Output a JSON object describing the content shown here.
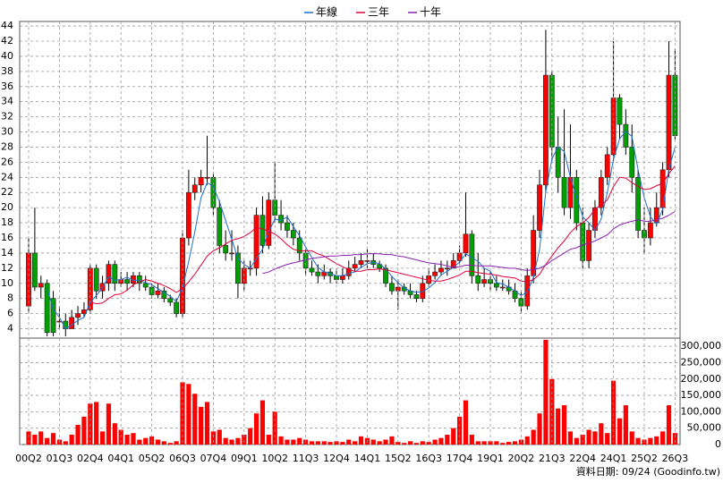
{
  "chart_data": [
    {
      "type": "candlestick",
      "up_color": "#ff0000",
      "down_color": "#00a000",
      "open": [
        7,
        14,
        9.5,
        10,
        8,
        5,
        5,
        4,
        5.5,
        6,
        6.5,
        12,
        9,
        10,
        12.5,
        10,
        10.5,
        10,
        11,
        10,
        9.5,
        8.5,
        9,
        8,
        7.5,
        6,
        16,
        22,
        23,
        24,
        24,
        20,
        15,
        14,
        14,
        10,
        12,
        12,
        19,
        15,
        21,
        19,
        18,
        17,
        16,
        14,
        12,
        11.5,
        11,
        11.5,
        11,
        10.5,
        11,
        12,
        12.5,
        13,
        13,
        12.5,
        12,
        10,
        9,
        9.5,
        9,
        8.5,
        8,
        10,
        11,
        11.5,
        12,
        12,
        13,
        14,
        16.5,
        11,
        10,
        10.5,
        10,
        9.5,
        9.5,
        9,
        8,
        7,
        11,
        17,
        23,
        37.5,
        28,
        24,
        20,
        24,
        18,
        13,
        17,
        20,
        24,
        27,
        34.5,
        31,
        28,
        24,
        17,
        16,
        18,
        20,
        25,
        37.5
      ],
      "high": [
        16,
        20,
        11,
        10.5,
        9,
        7,
        6,
        6.5,
        7,
        7.5,
        12.5,
        12.5,
        11,
        13,
        13,
        11.5,
        11.5,
        11.5,
        11.5,
        11,
        10,
        10,
        9.5,
        8.5,
        8,
        17,
        25,
        24,
        25,
        29.5,
        24.5,
        21,
        17,
        17,
        15,
        13,
        13,
        20,
        21.5,
        22,
        26,
        21,
        19,
        18,
        17,
        14.5,
        13,
        12.5,
        12.5,
        12,
        12,
        12,
        13,
        13.5,
        14,
        14.5,
        14,
        13,
        12.5,
        11,
        10.5,
        10,
        10,
        9,
        11,
        12,
        12.5,
        13,
        13,
        14,
        15,
        22,
        17,
        14,
        12,
        11.5,
        11,
        10.5,
        10.5,
        10,
        9,
        12,
        19,
        25,
        43.5,
        38,
        32,
        33,
        31,
        25,
        20,
        18,
        21,
        25,
        28,
        42,
        35,
        33,
        31,
        25,
        20,
        20,
        22,
        26,
        42,
        41
      ],
      "low": [
        6,
        9,
        8,
        3,
        3,
        4,
        3,
        4,
        4.5,
        5.5,
        6,
        8,
        8,
        9,
        9,
        9.5,
        9,
        9.5,
        9,
        9,
        8,
        8,
        7.5,
        7,
        5.5,
        5.5,
        15,
        21,
        22,
        23,
        19,
        14,
        13,
        13,
        8,
        9,
        11,
        11,
        14,
        14.5,
        18,
        17,
        16,
        15,
        13,
        11,
        11,
        10,
        10.5,
        10,
        10,
        10,
        10.5,
        11.5,
        12,
        12,
        12,
        11.5,
        9.5,
        8.5,
        6.5,
        8.5,
        8,
        7.5,
        7.5,
        9.5,
        10.5,
        11,
        11,
        12,
        12.5,
        13.5,
        10,
        9,
        9.5,
        9,
        9,
        9,
        8.5,
        7.5,
        6,
        6.5,
        10,
        16,
        22,
        26,
        22,
        19,
        18.5,
        17,
        12,
        12,
        16,
        19,
        23,
        26,
        29,
        27,
        22,
        16,
        14,
        15,
        17.5,
        19,
        24,
        29
      ],
      "close": [
        14,
        9.5,
        10,
        3.5,
        3.5,
        5,
        4,
        5.5,
        6,
        6.5,
        12,
        9,
        10,
        12.5,
        10,
        10.5,
        10,
        11,
        10,
        9.5,
        8.5,
        9,
        8,
        7.5,
        6,
        16,
        22,
        23,
        24,
        24,
        20,
        15,
        14,
        14,
        10,
        12,
        12,
        19,
        15,
        21,
        19,
        18,
        17,
        16,
        14,
        12,
        11.5,
        11,
        11.5,
        11,
        10.5,
        11,
        12,
        12.5,
        13,
        13,
        12.5,
        12,
        10,
        9,
        9.5,
        9,
        8.5,
        8,
        10,
        11,
        11.5,
        12,
        12,
        13,
        14,
        16.5,
        11,
        10,
        10.5,
        10,
        9.5,
        9.5,
        9,
        8,
        7,
        11,
        17,
        23,
        37.5,
        28,
        24,
        20,
        24,
        18,
        13,
        17,
        20,
        24,
        27,
        34.5,
        31,
        28,
        24,
        17,
        16,
        18,
        20,
        25,
        37.5,
        29.5
      ],
      "series": [
        {
          "name": "年線",
          "color": "#1e6fd0",
          "values": [
            null,
            null,
            null,
            9.3,
            6.6,
            5.5,
            4,
            4.5,
            5.1,
            5.5,
            7.5,
            8.4,
            9.4,
            10.9,
            10.4,
            10.5,
            10.8,
            10.4,
            10.4,
            10.1,
            9.8,
            9.3,
            8.8,
            8.3,
            7.6,
            9.4,
            12.9,
            16.8,
            21.3,
            23.3,
            22.8,
            20.8,
            18.3,
            15.8,
            13.3,
            12.5,
            12,
            13.3,
            14.5,
            16.8,
            18.5,
            18.3,
            18.8,
            17.5,
            16.3,
            14.8,
            13.4,
            12.1,
            11.5,
            11.3,
            11,
            11,
            11.3,
            11.5,
            12.1,
            12.6,
            12.8,
            12.6,
            11.9,
            10.9,
            10.1,
            9.4,
            9,
            8.8,
            8.9,
            9.4,
            10.1,
            11.1,
            11.6,
            12.1,
            12.8,
            13.9,
            13.4,
            12.9,
            12,
            11.6,
            10.1,
            9.9,
            9.5,
            9,
            8.4,
            8.8,
            10.8,
            14.5,
            22.1,
            26.4,
            28.1,
            27.4,
            24,
            21.5,
            18.8,
            18,
            17,
            18.5,
            22,
            26.4,
            29.1,
            30.1,
            29.4,
            25,
            21.3,
            18.8,
            17.8,
            19.8,
            25.1,
            28
          ]
        },
        {
          "name": "三年",
          "color": "#e0003a",
          "values": [
            null,
            null,
            null,
            null,
            null,
            null,
            null,
            null,
            null,
            null,
            7.5,
            7.3,
            7.4,
            8,
            8.5,
            8.6,
            9.1,
            9.8,
            10.2,
            10.5,
            10.3,
            10,
            9.7,
            9.3,
            8.8,
            9.3,
            10.2,
            11.2,
            12.4,
            13.6,
            14.3,
            14.7,
            15.2,
            15.7,
            15.9,
            16.2,
            16.7,
            17.4,
            17.2,
            16.9,
            16.5,
            15.9,
            15.1,
            14.5,
            14.3,
            14.3,
            14.3,
            13.9,
            13.6,
            13.1,
            12.6,
            12.2,
            11.8,
            11.6,
            11.6,
            11.8,
            11.8,
            11.9,
            11.8,
            11.6,
            11.4,
            11.2,
            11,
            10.8,
            10.6,
            10.4,
            10.3,
            10.3,
            10.5,
            10.8,
            11.1,
            11.6,
            11.6,
            11.4,
            11.3,
            11.2,
            11.1,
            10.9,
            10.8,
            10.7,
            10.3,
            10.2,
            10.5,
            11.2,
            12.5,
            13.6,
            14.7,
            15.6,
            16.7,
            17.5,
            18,
            18.7,
            19.8,
            20.4,
            21,
            22.8,
            24,
            23.9,
            23.3,
            22.8,
            22.4,
            22.5,
            22.9,
            23.2,
            24.5,
            25.5
          ]
        },
        {
          "name": "十年",
          "color": "#8a1fb0",
          "values": [
            null,
            null,
            null,
            null,
            null,
            null,
            null,
            null,
            null,
            null,
            null,
            null,
            null,
            null,
            null,
            null,
            null,
            null,
            null,
            null,
            null,
            null,
            null,
            null,
            null,
            null,
            null,
            null,
            null,
            null,
            null,
            null,
            null,
            null,
            null,
            null,
            null,
            null,
            11.3,
            11.5,
            11.9,
            12.2,
            12.5,
            12.7,
            12.9,
            13.1,
            13.3,
            13.4,
            13.5,
            13.6,
            13.6,
            13.7,
            13.7,
            13.8,
            13.8,
            13.9,
            13.9,
            13.9,
            13.8,
            13.8,
            13.6,
            13.5,
            13.3,
            13.1,
            12.9,
            12.7,
            12.6,
            12.5,
            12.3,
            12.1,
            12.2,
            12.4,
            12.4,
            12.3,
            12.3,
            12.3,
            12.2,
            12.1,
            12,
            12,
            11.8,
            11.7,
            11.8,
            12,
            12.4,
            13,
            13.5,
            14,
            14.5,
            14.7,
            15.1,
            15.3,
            15.6,
            16,
            16.4,
            17.2,
            17.7,
            18,
            18.2,
            18.4,
            18.2,
            18.2,
            18.4,
            18.6,
            19,
            19.5
          ]
        }
      ],
      "ylim": [
        3,
        44.6
      ],
      "yticks": [
        4,
        6,
        8,
        10,
        12,
        14,
        16,
        18,
        20,
        22,
        24,
        26,
        28,
        30,
        32,
        34,
        36,
        38,
        40,
        42,
        44
      ],
      "grid": true
    },
    {
      "type": "bar",
      "color": "#ff0000",
      "categories": [
        "00Q2",
        null,
        null,
        null,
        null,
        "01Q3",
        null,
        null,
        null,
        null,
        "02Q4",
        null,
        null,
        null,
        null,
        "04Q1",
        null,
        null,
        null,
        null,
        "05Q2",
        null,
        null,
        null,
        null,
        "06Q3",
        null,
        null,
        null,
        null,
        "07Q4",
        null,
        null,
        null,
        null,
        "09Q1",
        null,
        null,
        null,
        null,
        "10Q2",
        null,
        null,
        null,
        null,
        "11Q3",
        null,
        null,
        null,
        null,
        "12Q4",
        null,
        null,
        null,
        null,
        "14Q1",
        null,
        null,
        null,
        null,
        "15Q2",
        null,
        null,
        null,
        null,
        "16Q3",
        null,
        null,
        null,
        null,
        "17Q4",
        null,
        null,
        null,
        null,
        "19Q1",
        null,
        null,
        null,
        null,
        "20Q2",
        null,
        null,
        null,
        null,
        "21Q3",
        null,
        null,
        null,
        null,
        "22Q4",
        null,
        null,
        null,
        null,
        "24Q1",
        null,
        null,
        null,
        null,
        "25Q2",
        null,
        null,
        null,
        null,
        "26Q3"
      ],
      "values": [
        40000,
        30000,
        40000,
        20000,
        35000,
        15000,
        10000,
        30000,
        60000,
        85000,
        125000,
        130000,
        40000,
        125000,
        65000,
        45000,
        30000,
        35000,
        15000,
        20000,
        25000,
        15000,
        10000,
        5000,
        10000,
        190000,
        185000,
        155000,
        115000,
        130000,
        40000,
        45000,
        20000,
        15000,
        20000,
        30000,
        50000,
        95000,
        135000,
        30000,
        100000,
        25000,
        15000,
        15000,
        20000,
        15000,
        10000,
        10000,
        10000,
        8000,
        10000,
        8000,
        15000,
        10000,
        25000,
        20000,
        15000,
        10000,
        15000,
        25000,
        8000,
        5000,
        10000,
        5000,
        10000,
        8000,
        15000,
        20000,
        30000,
        50000,
        85000,
        135000,
        30000,
        10000,
        10000,
        10000,
        10000,
        5000,
        8000,
        10000,
        15000,
        25000,
        45000,
        95000,
        320000,
        200000,
        110000,
        120000,
        40000,
        20000,
        30000,
        45000,
        40000,
        65000,
        35000,
        195000,
        80000,
        120000,
        40000,
        20000,
        15000,
        20000,
        25000,
        40000,
        120000,
        35000
      ],
      "ylim": [
        0,
        325000
      ],
      "yticks": [
        0,
        {
          "value": 50000,
          "label": "50,000"
        },
        {
          "value": 100000,
          "label": "100,000"
        },
        {
          "value": 150000,
          "label": "150,000"
        },
        {
          "value": 200000,
          "label": "200,000"
        },
        {
          "value": 250000,
          "label": "250,000"
        },
        {
          "value": 300000,
          "label": "300,000"
        }
      ],
      "grid": true
    }
  ],
  "footnote": "資料日期: 09/24  (Goodinfo.tw)"
}
